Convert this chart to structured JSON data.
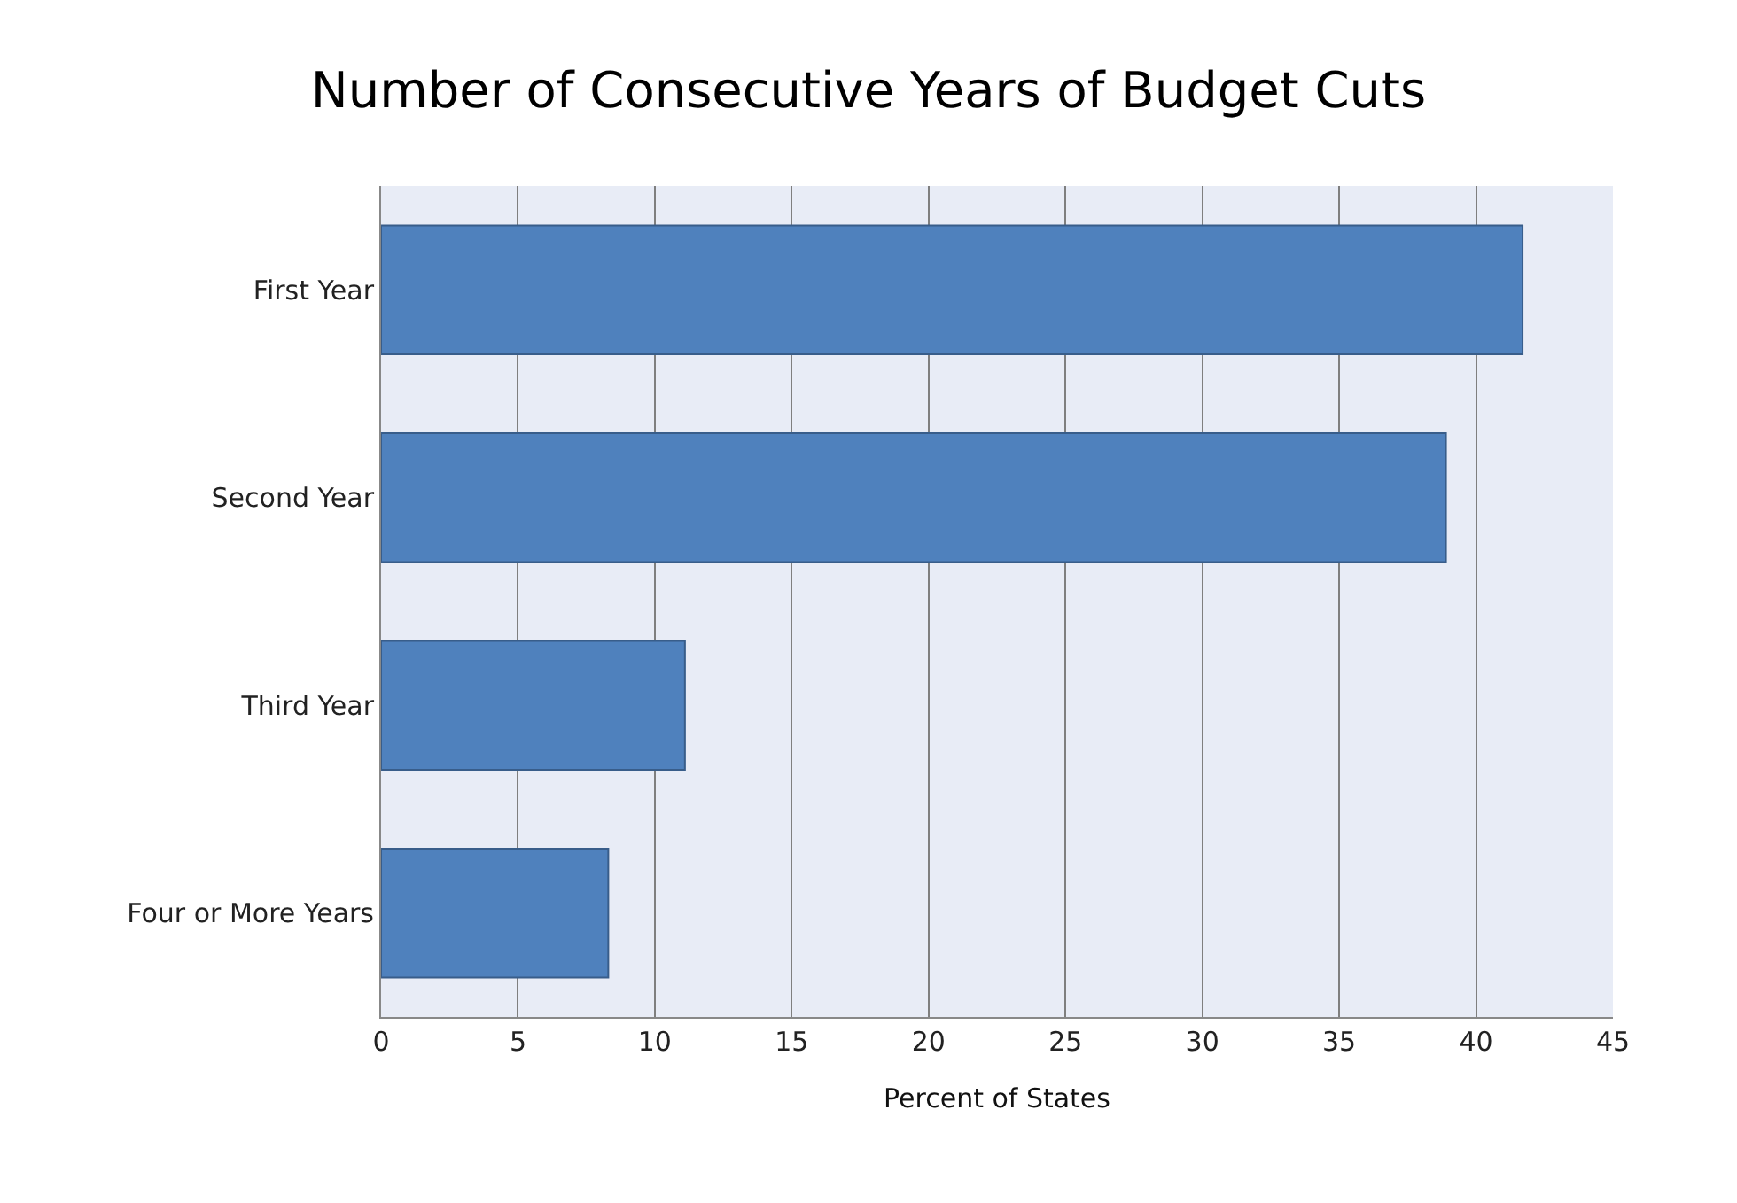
{
  "chart_data": {
    "type": "bar",
    "orientation": "horizontal",
    "title": "Number of Consecutive Years of Budget Cuts",
    "xlabel": "Percent of States",
    "categories": [
      "First Year",
      "Second Year",
      "Third Year",
      "Four or More Years"
    ],
    "values": [
      41.7,
      38.9,
      11.1,
      8.3
    ],
    "color": "#4f81bd",
    "xlim": [
      0,
      45
    ],
    "xticks": [
      0,
      5,
      10,
      15,
      20,
      25,
      30,
      35,
      40,
      45
    ],
    "grid": "x"
  }
}
